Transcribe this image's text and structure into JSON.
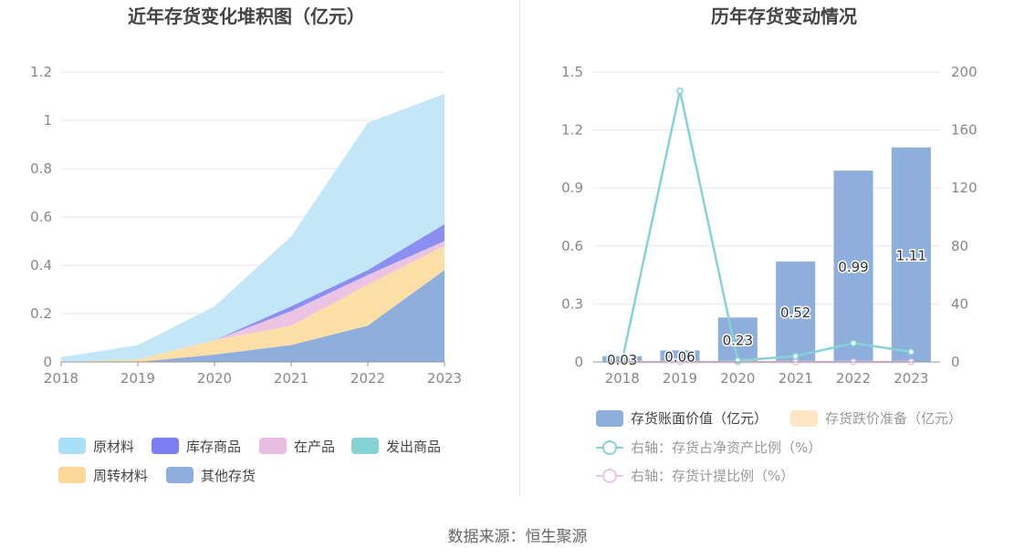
{
  "footer": {
    "source": "数据来源：恒生聚源"
  },
  "chart_data": [
    {
      "type": "area",
      "title": "近年存货变化堆积图（亿元）",
      "x": [
        "2018",
        "2019",
        "2020",
        "2021",
        "2022",
        "2023"
      ],
      "ylim": [
        0,
        1.2
      ],
      "yticks": [
        "0",
        "0.2",
        "0.4",
        "0.6",
        "0.8",
        "1",
        "1.2"
      ],
      "grid": true,
      "legend_position": "bottom",
      "stack_order": [
        "其他存货",
        "周转材料",
        "发出商品",
        "在产品",
        "库存商品",
        "原材料"
      ],
      "series": [
        {
          "name": "其他存货",
          "color": "#8eaedc",
          "values": [
            0,
            0,
            0.03,
            0.07,
            0.15,
            0.38
          ]
        },
        {
          "name": "周转材料",
          "color": "#fcdfa6",
          "values": [
            0,
            0.01,
            0.06,
            0.08,
            0.17,
            0.1
          ]
        },
        {
          "name": "发出商品",
          "color": "#86d3d6",
          "values": [
            0,
            0,
            0,
            0,
            0,
            0
          ]
        },
        {
          "name": "在产品",
          "color": "#ebc3e3",
          "values": [
            0,
            0,
            0,
            0.06,
            0.04,
            0.02
          ]
        },
        {
          "name": "库存商品",
          "color": "#8b90f0",
          "values": [
            0,
            0,
            0,
            0.02,
            0.02,
            0.07
          ]
        },
        {
          "name": "原材料",
          "color": "#c4e7f8",
          "values": [
            0.02,
            0.06,
            0.14,
            0.29,
            0.61,
            0.54
          ]
        }
      ],
      "legend": [
        {
          "name": "原材料",
          "color": "#a9dff7"
        },
        {
          "name": "库存商品",
          "color": "#7b7ff0"
        },
        {
          "name": "在产品",
          "color": "#e9bddf"
        },
        {
          "name": "发出商品",
          "color": "#86d3d6"
        },
        {
          "name": "周转材料",
          "color": "#fcd898"
        },
        {
          "name": "其他存货",
          "color": "#8eaedc"
        }
      ]
    },
    {
      "type": "bar",
      "title": "历年存货变动情况",
      "categories": [
        "2018",
        "2019",
        "2020",
        "2021",
        "2022",
        "2023"
      ],
      "ylim": [
        0,
        1.5
      ],
      "yticks": [
        "0",
        "0.3",
        "0.6",
        "0.9",
        "1.2",
        "1.5"
      ],
      "y2lim": [
        0,
        200
      ],
      "y2ticks": [
        "0",
        "40",
        "80",
        "120",
        "160",
        "200"
      ],
      "grid": true,
      "legend_position": "bottom",
      "bars": {
        "name": "存货账面价值（亿元）",
        "color": "#8eaedc",
        "values": [
          0.03,
          0.06,
          0.23,
          0.52,
          0.99,
          1.11
        ],
        "labels": [
          "0.03",
          "0.06",
          "0.23",
          "0.52",
          "0.99",
          "1.11"
        ]
      },
      "bars2": {
        "name": "存货跌价准备（亿元）",
        "color": "#fde6c4",
        "values": [
          0,
          0,
          0,
          0,
          0,
          0
        ]
      },
      "lines": [
        {
          "name": "右轴：存货占净资产比例（%）",
          "color": "#86d3d6",
          "axis": "right",
          "values": [
            1,
            187,
            1,
            4,
            13,
            7
          ]
        },
        {
          "name": "右轴：存货计提比例（%）",
          "color": "#ebc3e3",
          "axis": "right",
          "values": [
            0,
            0,
            0,
            0,
            0,
            0
          ]
        }
      ]
    }
  ]
}
